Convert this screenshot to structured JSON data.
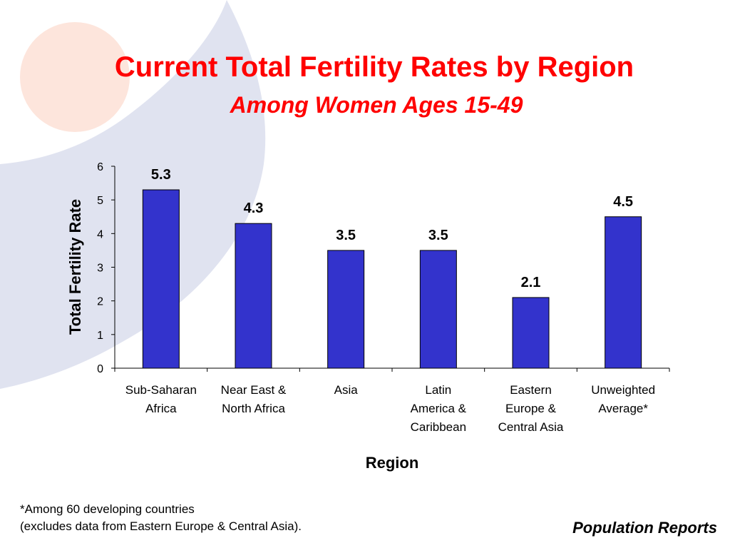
{
  "slide": {
    "title": "Current Total Fertility Rates by Region",
    "subtitle": "Among Women Ages 15-49",
    "footnote_line1": "*Among 60 developing countries",
    "footnote_line2": "(excludes data from Eastern Europe & Central Asia).",
    "source": "Population Reports"
  },
  "colors": {
    "bar": "#3333cc",
    "title": "#ff0000",
    "decor": "#e0e3f0",
    "decor_circle": "#fde5dc"
  },
  "chart_data": {
    "type": "bar",
    "title": "Current Total Fertility Rates by Region",
    "subtitle": "Among Women Ages 15-49",
    "xlabel": "Region",
    "ylabel": "Total Fertility Rate",
    "ylim": [
      0,
      6
    ],
    "yticks": [
      0,
      1,
      2,
      3,
      4,
      5,
      6
    ],
    "grid": false,
    "categories": [
      [
        "Sub-Saharan",
        "Africa"
      ],
      [
        "Near East &",
        "North Africa"
      ],
      [
        "Asia"
      ],
      [
        "Latin",
        "America &",
        "Caribbean"
      ],
      [
        "Eastern",
        "Europe &",
        "Central Asia"
      ],
      [
        "Unweighted",
        "Average*"
      ]
    ],
    "values": [
      5.3,
      4.3,
      3.5,
      3.5,
      2.1,
      4.5
    ],
    "data_labels": [
      "5.3",
      "4.3",
      "3.5",
      "3.5",
      "2.1",
      "4.5"
    ]
  }
}
